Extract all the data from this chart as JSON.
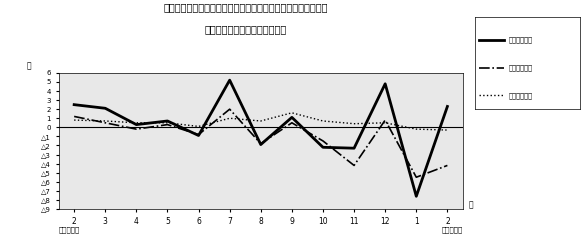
{
  "title_line1": "第４図　　賞金、労働時間、常用雇用指数対前年同月比の推移",
  "title_line2": "（規樯５人以上　調査産業計）",
  "xlabel_left": "平成２０年",
  "xlabel_right": "平成２１年",
  "ylabel": "％",
  "x_labels": [
    "2",
    "3",
    "4",
    "5",
    "6",
    "7",
    "8",
    "9",
    "10",
    "11",
    "12",
    "1",
    "2"
  ],
  "x_month_label": "月",
  "ylim": [
    -9.0,
    6.0
  ],
  "yticks": [
    6.0,
    5.0,
    4.0,
    3.0,
    2.0,
    1.0,
    0.0,
    -1.0,
    -2.0,
    -3.0,
    -4.0,
    -5.0,
    -6.0,
    -7.0,
    -8.0,
    -9.0
  ],
  "legend_labels": [
    "現金給与総額",
    "総実労働時間",
    "常用雇用指数"
  ],
  "series_chingin": [
    2.5,
    2.1,
    0.3,
    0.7,
    -0.9,
    5.2,
    -1.9,
    1.1,
    -2.2,
    -2.3,
    4.8,
    -7.6,
    2.3
  ],
  "series_rodo": [
    1.2,
    0.5,
    -0.2,
    0.3,
    -0.8,
    2.0,
    -1.8,
    0.5,
    -1.5,
    -4.2,
    0.8,
    -5.5,
    -4.2
  ],
  "series_koyo": [
    0.8,
    0.7,
    0.5,
    0.5,
    0.1,
    1.0,
    0.7,
    1.6,
    0.7,
    0.4,
    0.5,
    -0.2,
    -0.3
  ],
  "bg_color": "#ffffff",
  "plot_bg_color": "#e8e8e8"
}
